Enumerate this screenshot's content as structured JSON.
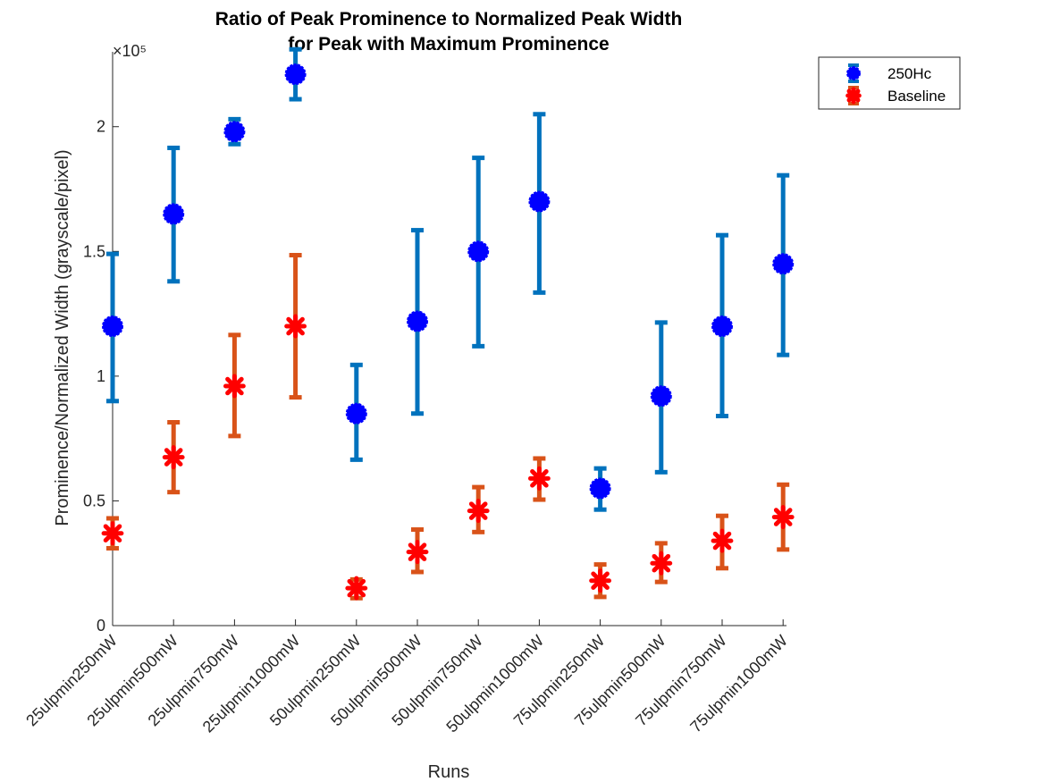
{
  "chart_data": {
    "type": "scatter",
    "title": [
      "Ratio of Peak Prominence to Normalized Peak Width",
      "for Peak with Maximum Prominence"
    ],
    "xlabel": "Runs",
    "ylabel": "Prominence/Normalized Width (grayscale/pixel)",
    "exponent_label": "×10⁵",
    "categories": [
      "25ulpmin250mW",
      "25ulpmin500mW",
      "25ulpmin750mW",
      "25ulpmin1000mW",
      "50ulpmin250mW",
      "50ulpmin500mW",
      "50ulpmin750mW",
      "50ulpmin1000mW",
      "75ulpmin250mW",
      "75ulpmin500mW",
      "75ulpmin750mW",
      "75ulpmin1000mW"
    ],
    "ylim": [
      0,
      230000
    ],
    "yticks": [
      0,
      50000,
      100000,
      150000,
      200000
    ],
    "ytick_labels": [
      "0",
      "0.5",
      "1",
      "1.5",
      "2"
    ],
    "grid": false,
    "legend_position": "top-right",
    "series": [
      {
        "name": "250Hc",
        "marker": "circle",
        "marker_color": "#0000ff",
        "errorbar_color": "#0072bd",
        "values": [
          120000,
          165000,
          198000,
          221000,
          85000,
          122000,
          150000,
          170000,
          55000,
          92000,
          120000,
          145000
        ],
        "lower": [
          90000,
          138000,
          193000,
          211000,
          66500,
          85000,
          112000,
          133500,
          46500,
          61500,
          84000,
          108500
        ],
        "upper": [
          149000,
          191500,
          203000,
          231000,
          104500,
          158500,
          187500,
          205000,
          63000,
          121500,
          156500,
          180500
        ]
      },
      {
        "name": "Baseline",
        "marker": "asterisk",
        "marker_color": "#ff0000",
        "errorbar_color": "#d95319",
        "values": [
          37000,
          67500,
          96000,
          120000,
          15000,
          29500,
          46000,
          59000,
          18000,
          25000,
          34000,
          43500
        ],
        "lower": [
          31000,
          53500,
          76000,
          91500,
          11000,
          21500,
          37500,
          50500,
          11500,
          17500,
          23000,
          30500
        ],
        "upper": [
          43000,
          81500,
          116500,
          148500,
          18500,
          38500,
          55500,
          67000,
          24500,
          33000,
          44000,
          56500
        ]
      }
    ]
  }
}
